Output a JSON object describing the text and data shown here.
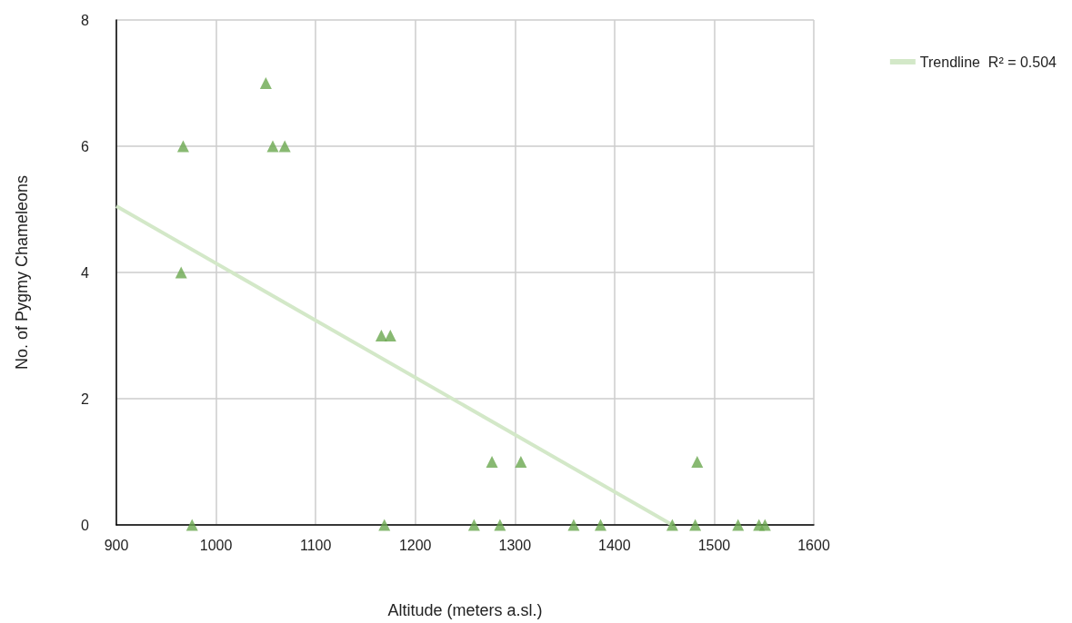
{
  "chart_data": {
    "type": "scatter",
    "xlabel": "Altitude (meters a.sl.)",
    "ylabel": "No. of Pygmy Chameleons",
    "series": [
      {
        "marker": "triangle",
        "color": "#6aa84f",
        "x": [
          967,
          965,
          976,
          1050,
          1057,
          1069,
          1166,
          1175,
          1169,
          1259,
          1277,
          1285,
          1306,
          1359,
          1386,
          1458,
          1481,
          1483,
          1524,
          1545,
          1551
        ],
        "values": [
          6,
          4,
          0,
          7,
          6,
          6,
          3,
          3,
          0,
          0,
          1,
          0,
          1,
          0,
          0,
          0,
          0,
          1,
          0,
          0,
          0
        ]
      },
      {
        "type": "line",
        "marker": "none",
        "name": "Trendline  R² = 0.504",
        "color": "#d3e8c8",
        "x": [
          900,
          1458
        ],
        "values": [
          5.05,
          0
        ]
      }
    ],
    "xlim": [
      900,
      1600
    ],
    "xticks": [
      900,
      1000,
      1100,
      1200,
      1300,
      1400,
      1500,
      1600
    ],
    "ylim": [
      0,
      8
    ],
    "yticks": [
      0,
      2,
      4,
      6,
      8
    ],
    "grid": true,
    "legend": "top right"
  }
}
